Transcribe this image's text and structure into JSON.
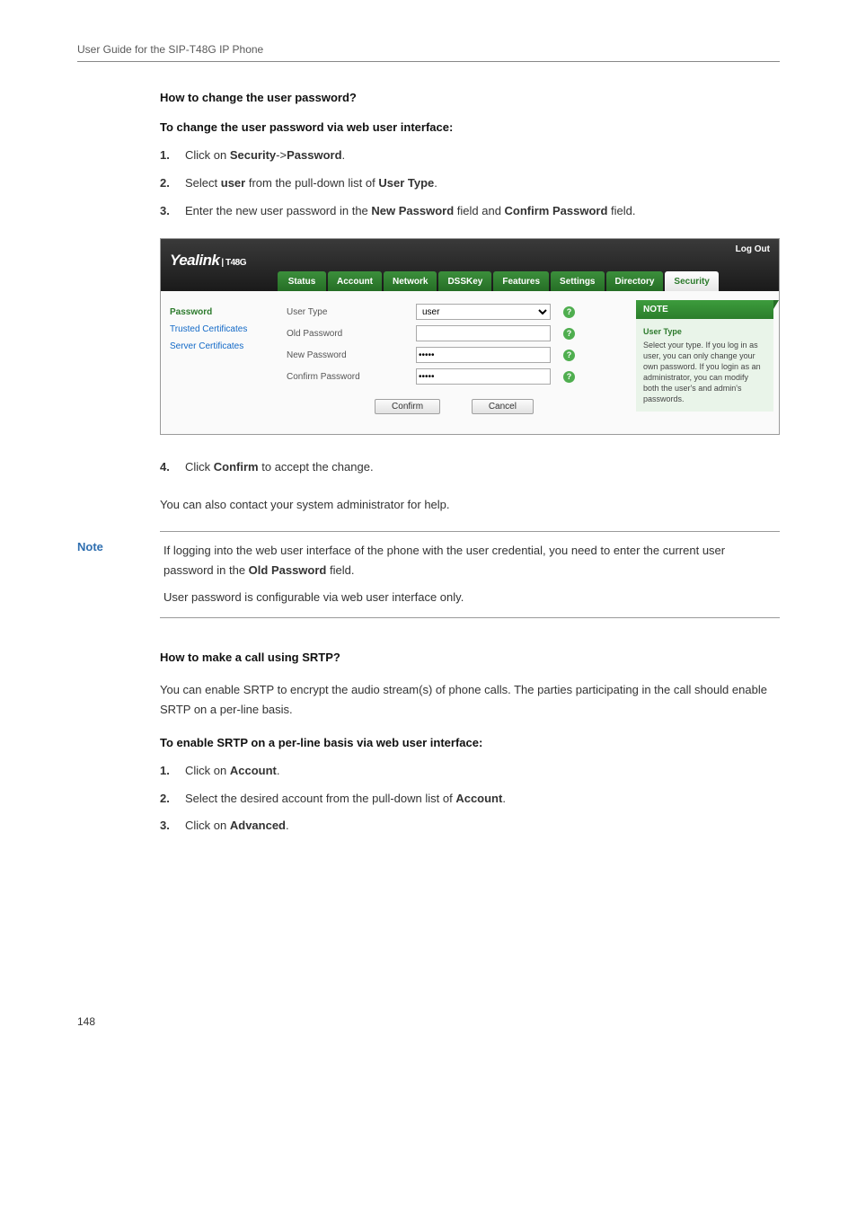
{
  "doc": {
    "running_header": "User Guide for the SIP-T48G IP Phone",
    "page_number": "148"
  },
  "sectionA": {
    "question": "How to change the user password?",
    "subheading": "To change the user password via web user interface:",
    "step1_num": "1.",
    "step1_pre": "Click on ",
    "step1_b1": "Security",
    "step1_mid": "->",
    "step1_b2": "Password",
    "step1_post": ".",
    "step2_num": "2.",
    "step2_pre": "Select ",
    "step2_b1": "user",
    "step2_mid": " from the pull-down list of ",
    "step2_b2": "User Type",
    "step2_post": ".",
    "step3_num": "3.",
    "step3_pre": "Enter the new user password in the ",
    "step3_b1": "New Password",
    "step3_mid": " field and ",
    "step3_b2": "Confirm Password",
    "step3_post": " field.",
    "step4_num": "4.",
    "step4_pre": "Click ",
    "step4_b1": "Confirm",
    "step4_post": " to accept the change.",
    "followup": "You can also contact your system administrator for help."
  },
  "screenshot": {
    "logout": "Log Out",
    "logo_main": "Yealink",
    "logo_model": "| T48G",
    "tabs": {
      "status": "Status",
      "account": "Account",
      "network": "Network",
      "dsskey": "DSSKey",
      "features": "Features",
      "settings": "Settings",
      "directory": "Directory",
      "security": "Security"
    },
    "sidebar": {
      "password": "Password",
      "trusted": "Trusted Certificates",
      "server": "Server Certificates"
    },
    "form": {
      "user_type_label": "User Type",
      "user_type_value": "user",
      "old_pw_label": "Old Password",
      "old_pw_value": "",
      "new_pw_label": "New Password",
      "new_pw_value": "•••••",
      "confirm_pw_label": "Confirm Password",
      "confirm_pw_value": "•••••",
      "confirm_btn": "Confirm",
      "cancel_btn": "Cancel"
    },
    "notebox": {
      "title": "NOTE",
      "sub": "User Type",
      "text": "Select your type. If you log in as user, you can only change your own password. If you login as an administrator, you can modify both the user's and admin's passwords."
    },
    "colors": {
      "header_bg_dark": "#1a1a1a",
      "tab_green": "#2c7a2c",
      "tab_active_text": "#2c7a2c",
      "note_green": "#2c7a2c",
      "link_blue": "#1269c7"
    }
  },
  "callout": {
    "label": "Note",
    "p1_pre": "If logging into the web user interface of the phone with the user credential, you need to enter the current user password in the ",
    "p1_b": "Old Password",
    "p1_post": " field.",
    "p2": "User password is configurable via web user interface only."
  },
  "sectionB": {
    "question": "How to make a call using SRTP?",
    "body": "You can enable SRTP to encrypt the audio stream(s) of phone calls. The parties participating in the call should enable SRTP on a per-line basis.",
    "subheading": "To enable SRTP on a per-line basis via web user interface:",
    "step1_num": "1.",
    "step1_pre": "Click on ",
    "step1_b1": "Account",
    "step1_post": ".",
    "step2_num": "2.",
    "step2_pre": "Select the desired account from the pull-down list of ",
    "step2_b1": "Account",
    "step2_post": ".",
    "step3_num": "3.",
    "step3_pre": "Click on ",
    "step3_b1": "Advanced",
    "step3_post": "."
  }
}
